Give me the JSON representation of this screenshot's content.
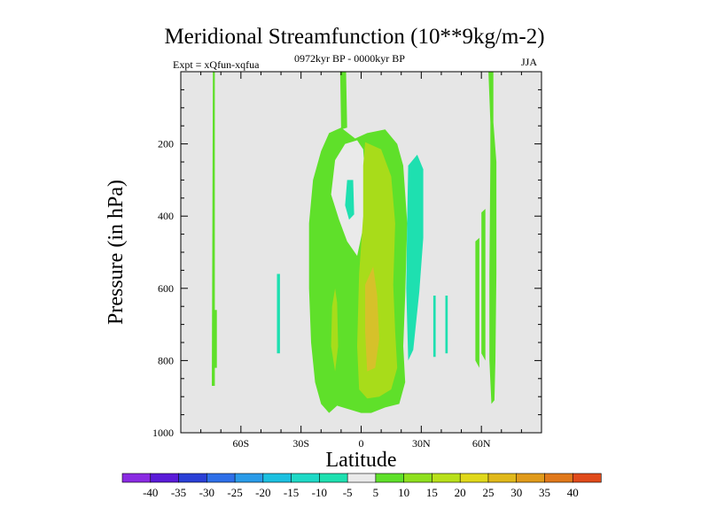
{
  "chart_data": {
    "type": "heatmap",
    "title": "Meridional Streamfunction (10**9kg/m-2)",
    "subtitle_left": "Expt = xQfun-xqfua",
    "subtitle_center": "0972kyr BP - 0000kyr BP",
    "subtitle_right": "JJA",
    "xlabel": "Latitude",
    "ylabel": "Pressure (in hPa)",
    "xlim": [
      -90,
      90
    ],
    "ylim": [
      1000,
      0
    ],
    "x_ticks": [
      {
        "value": -60,
        "label": "60S"
      },
      {
        "value": -30,
        "label": "30S"
      },
      {
        "value": 0,
        "label": "0"
      },
      {
        "value": 30,
        "label": "30N"
      },
      {
        "value": 60,
        "label": "60N"
      }
    ],
    "y_ticks": [
      {
        "value": 200,
        "label": "200"
      },
      {
        "value": 400,
        "label": "400"
      },
      {
        "value": 600,
        "label": "600"
      },
      {
        "value": 800,
        "label": "800"
      },
      {
        "value": 1000,
        "label": "1000"
      }
    ],
    "colorbar": {
      "levels": [
        "-40",
        "-35",
        "-30",
        "-25",
        "-20",
        "-15",
        "-10",
        "-5",
        "5",
        "10",
        "15",
        "20",
        "25",
        "30",
        "35",
        "40"
      ],
      "colors": [
        "#8a2be2",
        "#5a1bd8",
        "#2a3fd6",
        "#2e6fe8",
        "#2a9be8",
        "#1cc0e0",
        "#1ed9c6",
        "#1ee0b0",
        "#eaeaea",
        "#5fe02a",
        "#8ee01e",
        "#b8e01a",
        "#e0d81a",
        "#e0b81a",
        "#e09a1a",
        "#e0781a",
        "#e04a1a"
      ]
    },
    "background_color": "#e6e6e6",
    "regions": [
      {
        "level": "5",
        "color": "#5fe02a",
        "points": [
          [
            -74,
            0
          ],
          [
            -73,
            0
          ],
          [
            -73,
            870
          ],
          [
            -74.5,
            870
          ]
        ]
      },
      {
        "level": "5",
        "color": "#5fe02a",
        "points": [
          [
            -73.5,
            660
          ],
          [
            -72,
            660
          ],
          [
            -72,
            820
          ],
          [
            -73.5,
            820
          ]
        ]
      },
      {
        "level": "-5",
        "color": "#1ee0b0",
        "points": [
          [
            -42,
            560
          ],
          [
            -40.5,
            560
          ],
          [
            -40.5,
            780
          ],
          [
            -42,
            780
          ]
        ]
      },
      {
        "level": "5",
        "color": "#5fe02a",
        "points": [
          [
            -10.5,
            0
          ],
          [
            -7.5,
            0
          ],
          [
            -7,
            155
          ],
          [
            -10,
            160
          ]
        ]
      },
      {
        "level": "5",
        "color": "#5fe02a",
        "points": [
          [
            -20,
            220
          ],
          [
            -16,
            170
          ],
          [
            -10,
            155
          ],
          [
            -3,
            185
          ],
          [
            3,
            170
          ],
          [
            12,
            160
          ],
          [
            18,
            200
          ],
          [
            21,
            260
          ],
          [
            23,
            420
          ],
          [
            22,
            620
          ],
          [
            21,
            760
          ],
          [
            22,
            860
          ],
          [
            19,
            920
          ],
          [
            12,
            930
          ],
          [
            5,
            945
          ],
          [
            0,
            945
          ],
          [
            -6,
            935
          ],
          [
            -12,
            925
          ],
          [
            -16,
            945
          ],
          [
            -20,
            920
          ],
          [
            -23,
            860
          ],
          [
            -25,
            750
          ],
          [
            -26,
            600
          ],
          [
            -26,
            420
          ],
          [
            -24,
            300
          ]
        ]
      },
      {
        "level": "0",
        "color": "#eaeaea",
        "points": [
          [
            -13,
            245
          ],
          [
            -8,
            200
          ],
          [
            -2,
            190
          ],
          [
            1,
            215
          ],
          [
            3,
            380
          ],
          [
            -2,
            510
          ],
          [
            -7,
            470
          ],
          [
            -11,
            410
          ],
          [
            -15,
            340
          ]
        ]
      },
      {
        "level": "-5",
        "color": "#1ee0b0",
        "points": [
          [
            -7,
            300
          ],
          [
            -4,
            300
          ],
          [
            -3.5,
            395
          ],
          [
            -6,
            410
          ],
          [
            -8,
            370
          ]
        ]
      },
      {
        "level": "10",
        "color": "#a8dc1a",
        "points": [
          [
            2,
            195
          ],
          [
            10,
            215
          ],
          [
            15,
            290
          ],
          [
            17,
            420
          ],
          [
            16,
            590
          ],
          [
            17,
            720
          ],
          [
            18,
            820
          ],
          [
            15,
            880
          ],
          [
            9,
            900
          ],
          [
            3,
            905
          ],
          [
            -1,
            880
          ],
          [
            -2,
            760
          ],
          [
            -1,
            560
          ],
          [
            1,
            400
          ],
          [
            1,
            260
          ]
        ]
      },
      {
        "level": "10",
        "color": "#a8dc1a",
        "points": [
          [
            -13,
            600
          ],
          [
            -12,
            640
          ],
          [
            -11.5,
            760
          ],
          [
            -13,
            830
          ],
          [
            -15,
            760
          ],
          [
            -14.5,
            650
          ]
        ]
      },
      {
        "level": "15",
        "color": "#d6c12a",
        "points": [
          [
            2,
            590
          ],
          [
            6,
            540
          ],
          [
            8,
            620
          ],
          [
            9,
            740
          ],
          [
            7,
            820
          ],
          [
            3,
            830
          ],
          [
            2,
            720
          ]
        ]
      },
      {
        "level": "-5",
        "color": "#1ee0b0",
        "points": [
          [
            23.5,
            260
          ],
          [
            28,
            230
          ],
          [
            31,
            270
          ],
          [
            31,
            460
          ],
          [
            29,
            610
          ],
          [
            26,
            770
          ],
          [
            23.5,
            800
          ],
          [
            22.5,
            600
          ],
          [
            23,
            400
          ]
        ]
      },
      {
        "level": "-5",
        "color": "#1ee0b0",
        "points": [
          [
            36,
            620
          ],
          [
            37.2,
            620
          ],
          [
            37.2,
            790
          ],
          [
            36,
            790
          ]
        ]
      },
      {
        "level": "-5",
        "color": "#1ee0b0",
        "points": [
          [
            42,
            620
          ],
          [
            43.2,
            620
          ],
          [
            43.2,
            780
          ],
          [
            42,
            780
          ]
        ]
      },
      {
        "level": "5",
        "color": "#5fe02a",
        "points": [
          [
            57,
            470
          ],
          [
            59,
            460
          ],
          [
            59,
            820
          ],
          [
            57,
            800
          ]
        ]
      },
      {
        "level": "5",
        "color": "#5fe02a",
        "points": [
          [
            60,
            390
          ],
          [
            62,
            380
          ],
          [
            62,
            800
          ],
          [
            60,
            780
          ]
        ]
      },
      {
        "level": "5",
        "color": "#5fe02a",
        "points": [
          [
            63.5,
            0
          ],
          [
            66,
            0
          ],
          [
            66,
            140
          ],
          [
            67.5,
            250
          ],
          [
            67.5,
            560
          ],
          [
            67,
            800
          ],
          [
            66.5,
            910
          ],
          [
            65,
            920
          ],
          [
            64,
            800
          ],
          [
            64,
            560
          ],
          [
            64.5,
            250
          ],
          [
            64.5,
            140
          ]
        ]
      }
    ]
  }
}
